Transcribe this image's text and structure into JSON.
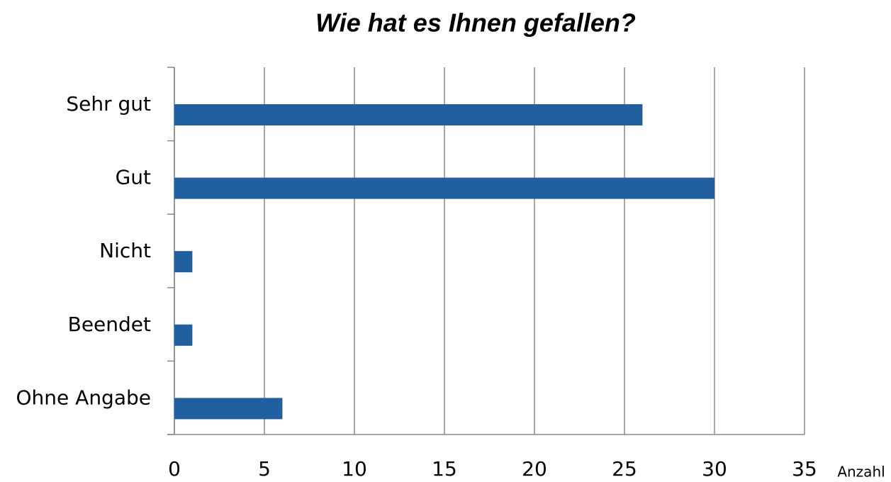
{
  "chart_data": {
    "type": "bar",
    "orientation": "horizontal",
    "title": "Wie hat es Ihnen gefallen?",
    "x_label": "Anzahl",
    "categories": [
      "Sehr gut",
      "Gut",
      "Nicht",
      "Beendet",
      "Ohne Angabe"
    ],
    "values": [
      26,
      30,
      1,
      1,
      6
    ],
    "color": "#2060a0",
    "xlim": [
      0,
      35
    ],
    "xticks": [
      0,
      5,
      10,
      15,
      20,
      25,
      30,
      35
    ],
    "grid": true
  }
}
